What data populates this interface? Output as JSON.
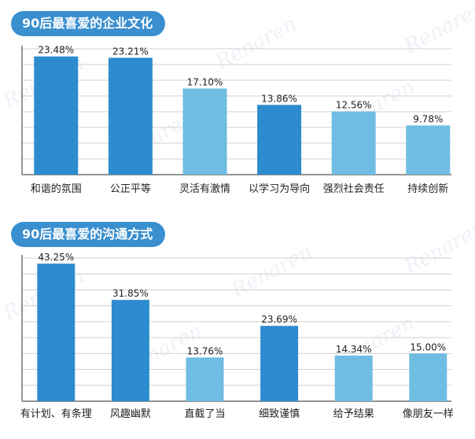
{
  "colors": {
    "title_bg": "#3a8fcf",
    "bar_dark": "#2d8ccd",
    "bar_light": "#6fbde2",
    "grid": "#d0d0d0",
    "axis": "#555555",
    "text": "#222222"
  },
  "watermark": "Renaren",
  "chart_data": [
    {
      "type": "bar",
      "title": "90后最喜爱的企业文化",
      "categories": [
        "和谐的氛围",
        "公正平等",
        "灵活有激情",
        "以学习为导向",
        "强烈社会责任",
        "持续创新"
      ],
      "values": [
        23.48,
        23.21,
        17.1,
        13.86,
        12.56,
        9.78
      ],
      "labels": [
        "23.48%",
        "23.21%",
        "17.10%",
        "13.86%",
        "12.56%",
        "9.78%"
      ],
      "bar_tone": [
        "dark",
        "dark",
        "light",
        "dark",
        "light",
        "light"
      ],
      "ylim": [
        0,
        25
      ],
      "grid": true
    },
    {
      "type": "bar",
      "title": "90后最喜爱的沟通方式",
      "categories": [
        "有计划、有条理",
        "风趣幽默",
        "直截了当",
        "细致谨慎",
        "给予结果",
        "像朋友一样"
      ],
      "values": [
        43.25,
        31.85,
        13.76,
        23.69,
        14.34,
        15.0
      ],
      "labels": [
        "43.25%",
        "31.85%",
        "13.76%",
        "23.69%",
        "14.34%",
        "15.00%"
      ],
      "bar_tone": [
        "dark",
        "dark",
        "light",
        "dark",
        "light",
        "light"
      ],
      "ylim": [
        0,
        45
      ],
      "grid": true
    }
  ]
}
